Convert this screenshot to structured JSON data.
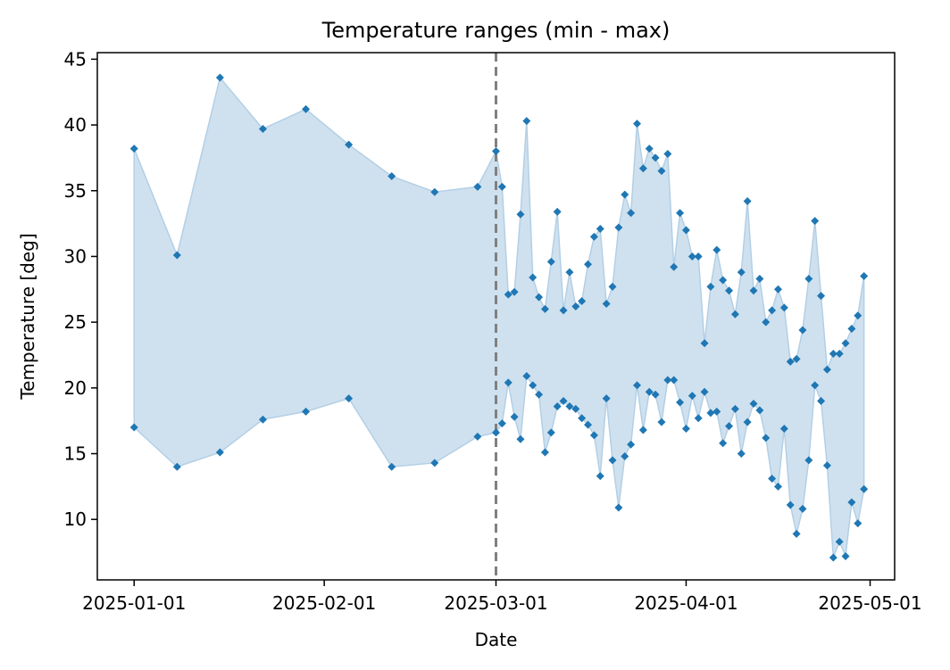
{
  "chart_data": {
    "type": "area",
    "title": "Temperature ranges (min - max)",
    "xlabel": "Date",
    "ylabel": "Temperature [deg]",
    "x_ticks": [
      "2025-01-01",
      "2025-02-01",
      "2025-03-01",
      "2025-04-01",
      "2025-05-01"
    ],
    "y_ticks": [
      10,
      15,
      20,
      25,
      30,
      35,
      40,
      45
    ],
    "xlim": [
      "2024-12-26",
      "2025-05-05"
    ],
    "ylim": [
      5.4,
      45.5
    ],
    "grid": false,
    "vline": {
      "x": "2025-03-01",
      "style": "dashed",
      "color": "#808080"
    },
    "colors": {
      "fill": "#cfe1ef",
      "fill_edge": "#b3cfe5",
      "marker": "#1f77b4"
    },
    "x": [
      "2025-01-01",
      "2025-01-08",
      "2025-01-15",
      "2025-01-22",
      "2025-01-29",
      "2025-02-05",
      "2025-02-12",
      "2025-02-19",
      "2025-02-26",
      "2025-03-01",
      "2025-03-02",
      "2025-03-03",
      "2025-03-04",
      "2025-03-05",
      "2025-03-06",
      "2025-03-07",
      "2025-03-08",
      "2025-03-09",
      "2025-03-10",
      "2025-03-11",
      "2025-03-12",
      "2025-03-13",
      "2025-03-14",
      "2025-03-15",
      "2025-03-16",
      "2025-03-17",
      "2025-03-18",
      "2025-03-19",
      "2025-03-20",
      "2025-03-21",
      "2025-03-22",
      "2025-03-23",
      "2025-03-24",
      "2025-03-25",
      "2025-03-26",
      "2025-03-27",
      "2025-03-28",
      "2025-03-29",
      "2025-03-30",
      "2025-03-31",
      "2025-04-01",
      "2025-04-02",
      "2025-04-03",
      "2025-04-04",
      "2025-04-05",
      "2025-04-06",
      "2025-04-07",
      "2025-04-08",
      "2025-04-09",
      "2025-04-10",
      "2025-04-11",
      "2025-04-12",
      "2025-04-13",
      "2025-04-14",
      "2025-04-15",
      "2025-04-16",
      "2025-04-17",
      "2025-04-18",
      "2025-04-19",
      "2025-04-20",
      "2025-04-21",
      "2025-04-22",
      "2025-04-23",
      "2025-04-24",
      "2025-04-25",
      "2025-04-26",
      "2025-04-27",
      "2025-04-28",
      "2025-04-29",
      "2025-04-30"
    ],
    "series": [
      {
        "role": "max",
        "values": [
          38.2,
          30.1,
          43.6,
          39.7,
          41.2,
          38.5,
          36.1,
          34.9,
          35.3,
          38.0,
          35.3,
          27.1,
          27.3,
          33.2,
          40.3,
          28.4,
          26.9,
          26.0,
          29.6,
          33.4,
          25.9,
          28.8,
          26.2,
          26.6,
          29.4,
          31.5,
          32.1,
          26.4,
          27.7,
          32.2,
          34.7,
          33.3,
          40.1,
          36.7,
          38.2,
          37.5,
          36.5,
          37.8,
          29.2,
          33.3,
          32.0,
          30.0,
          30.0,
          23.4,
          27.7,
          30.5,
          28.2,
          27.4,
          25.6,
          28.8,
          34.2,
          27.4,
          28.3,
          25.0,
          25.9,
          27.5,
          26.1,
          22.0,
          22.2,
          24.4,
          28.3,
          32.7,
          27.0,
          21.4,
          22.6,
          22.6,
          23.4,
          24.5,
          25.5,
          28.5
        ]
      },
      {
        "role": "min",
        "values": [
          17.0,
          14.0,
          15.1,
          17.6,
          18.2,
          19.2,
          14.0,
          14.3,
          16.3,
          16.6,
          17.3,
          20.4,
          17.8,
          16.1,
          20.9,
          20.2,
          19.5,
          15.1,
          16.6,
          18.6,
          19.0,
          18.6,
          18.4,
          17.7,
          17.2,
          16.4,
          13.3,
          19.2,
          14.5,
          10.9,
          14.8,
          15.7,
          20.2,
          16.8,
          19.7,
          19.5,
          17.4,
          20.6,
          20.6,
          18.9,
          16.9,
          19.4,
          17.7,
          19.7,
          18.1,
          18.2,
          15.8,
          17.1,
          18.4,
          15.0,
          17.4,
          18.8,
          18.3,
          16.2,
          13.1,
          12.5,
          16.9,
          11.1,
          8.9,
          10.8,
          14.5,
          20.2,
          19.0,
          14.1,
          7.1,
          8.3,
          7.2,
          11.3,
          9.7,
          12.3
        ]
      }
    ]
  }
}
